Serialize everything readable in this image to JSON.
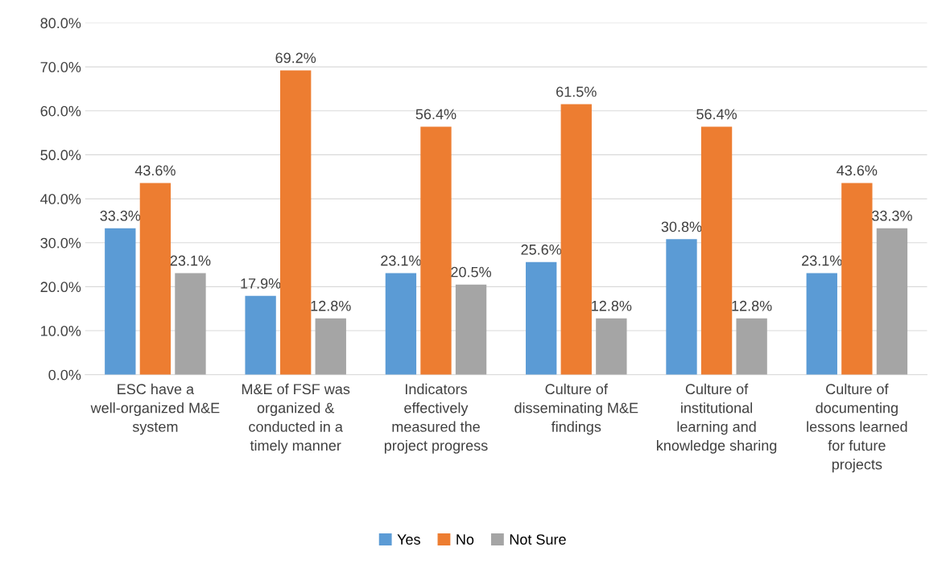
{
  "chart_data": {
    "type": "bar",
    "categories": [
      "ESC have a well-organized M&E system",
      "M&E of FSF was organized & conducted in a timely manner",
      "Indicators effectively measured the project progress",
      "Culture of disseminating M&E findings",
      "Culture of institutional learning and knowledge sharing",
      "Culture of documenting lessons learned for future projects"
    ],
    "series": [
      {
        "name": "Yes",
        "color": "#5b9bd5",
        "values": [
          33.3,
          17.9,
          23.1,
          25.6,
          30.8,
          23.1
        ],
        "value_labels": [
          "33.3%",
          "17.9%",
          "23.1%",
          "25.6%",
          "30.8%",
          "23.1%"
        ]
      },
      {
        "name": "No",
        "color": "#ed7d31",
        "values": [
          43.6,
          69.2,
          56.4,
          61.5,
          56.4,
          43.6
        ],
        "value_labels": [
          "43.6%",
          "69.2%",
          "56.4%",
          "61.5%",
          "56.4%",
          "43.6%"
        ]
      },
      {
        "name": "Not Sure",
        "color": "#a5a5a5",
        "values": [
          23.1,
          12.8,
          20.5,
          12.8,
          12.8,
          33.3
        ],
        "value_labels": [
          "23.1%",
          "12.8%",
          "20.5%",
          "12.8%",
          "12.8%",
          "33.3%"
        ]
      }
    ],
    "ylim": [
      0,
      80
    ],
    "yticks": [
      {
        "value": 0,
        "label": "0.0%"
      },
      {
        "value": 10,
        "label": "10.0%"
      },
      {
        "value": 20,
        "label": "20.0%"
      },
      {
        "value": 30,
        "label": "30.0%"
      },
      {
        "value": 40,
        "label": "40.0%"
      },
      {
        "value": 50,
        "label": "50.0%"
      },
      {
        "value": 60,
        "label": "60.0%"
      },
      {
        "value": 70,
        "label": "70.0%"
      },
      {
        "value": 80,
        "label": "80.0%"
      }
    ],
    "grid": "y",
    "legend": "bottom"
  }
}
